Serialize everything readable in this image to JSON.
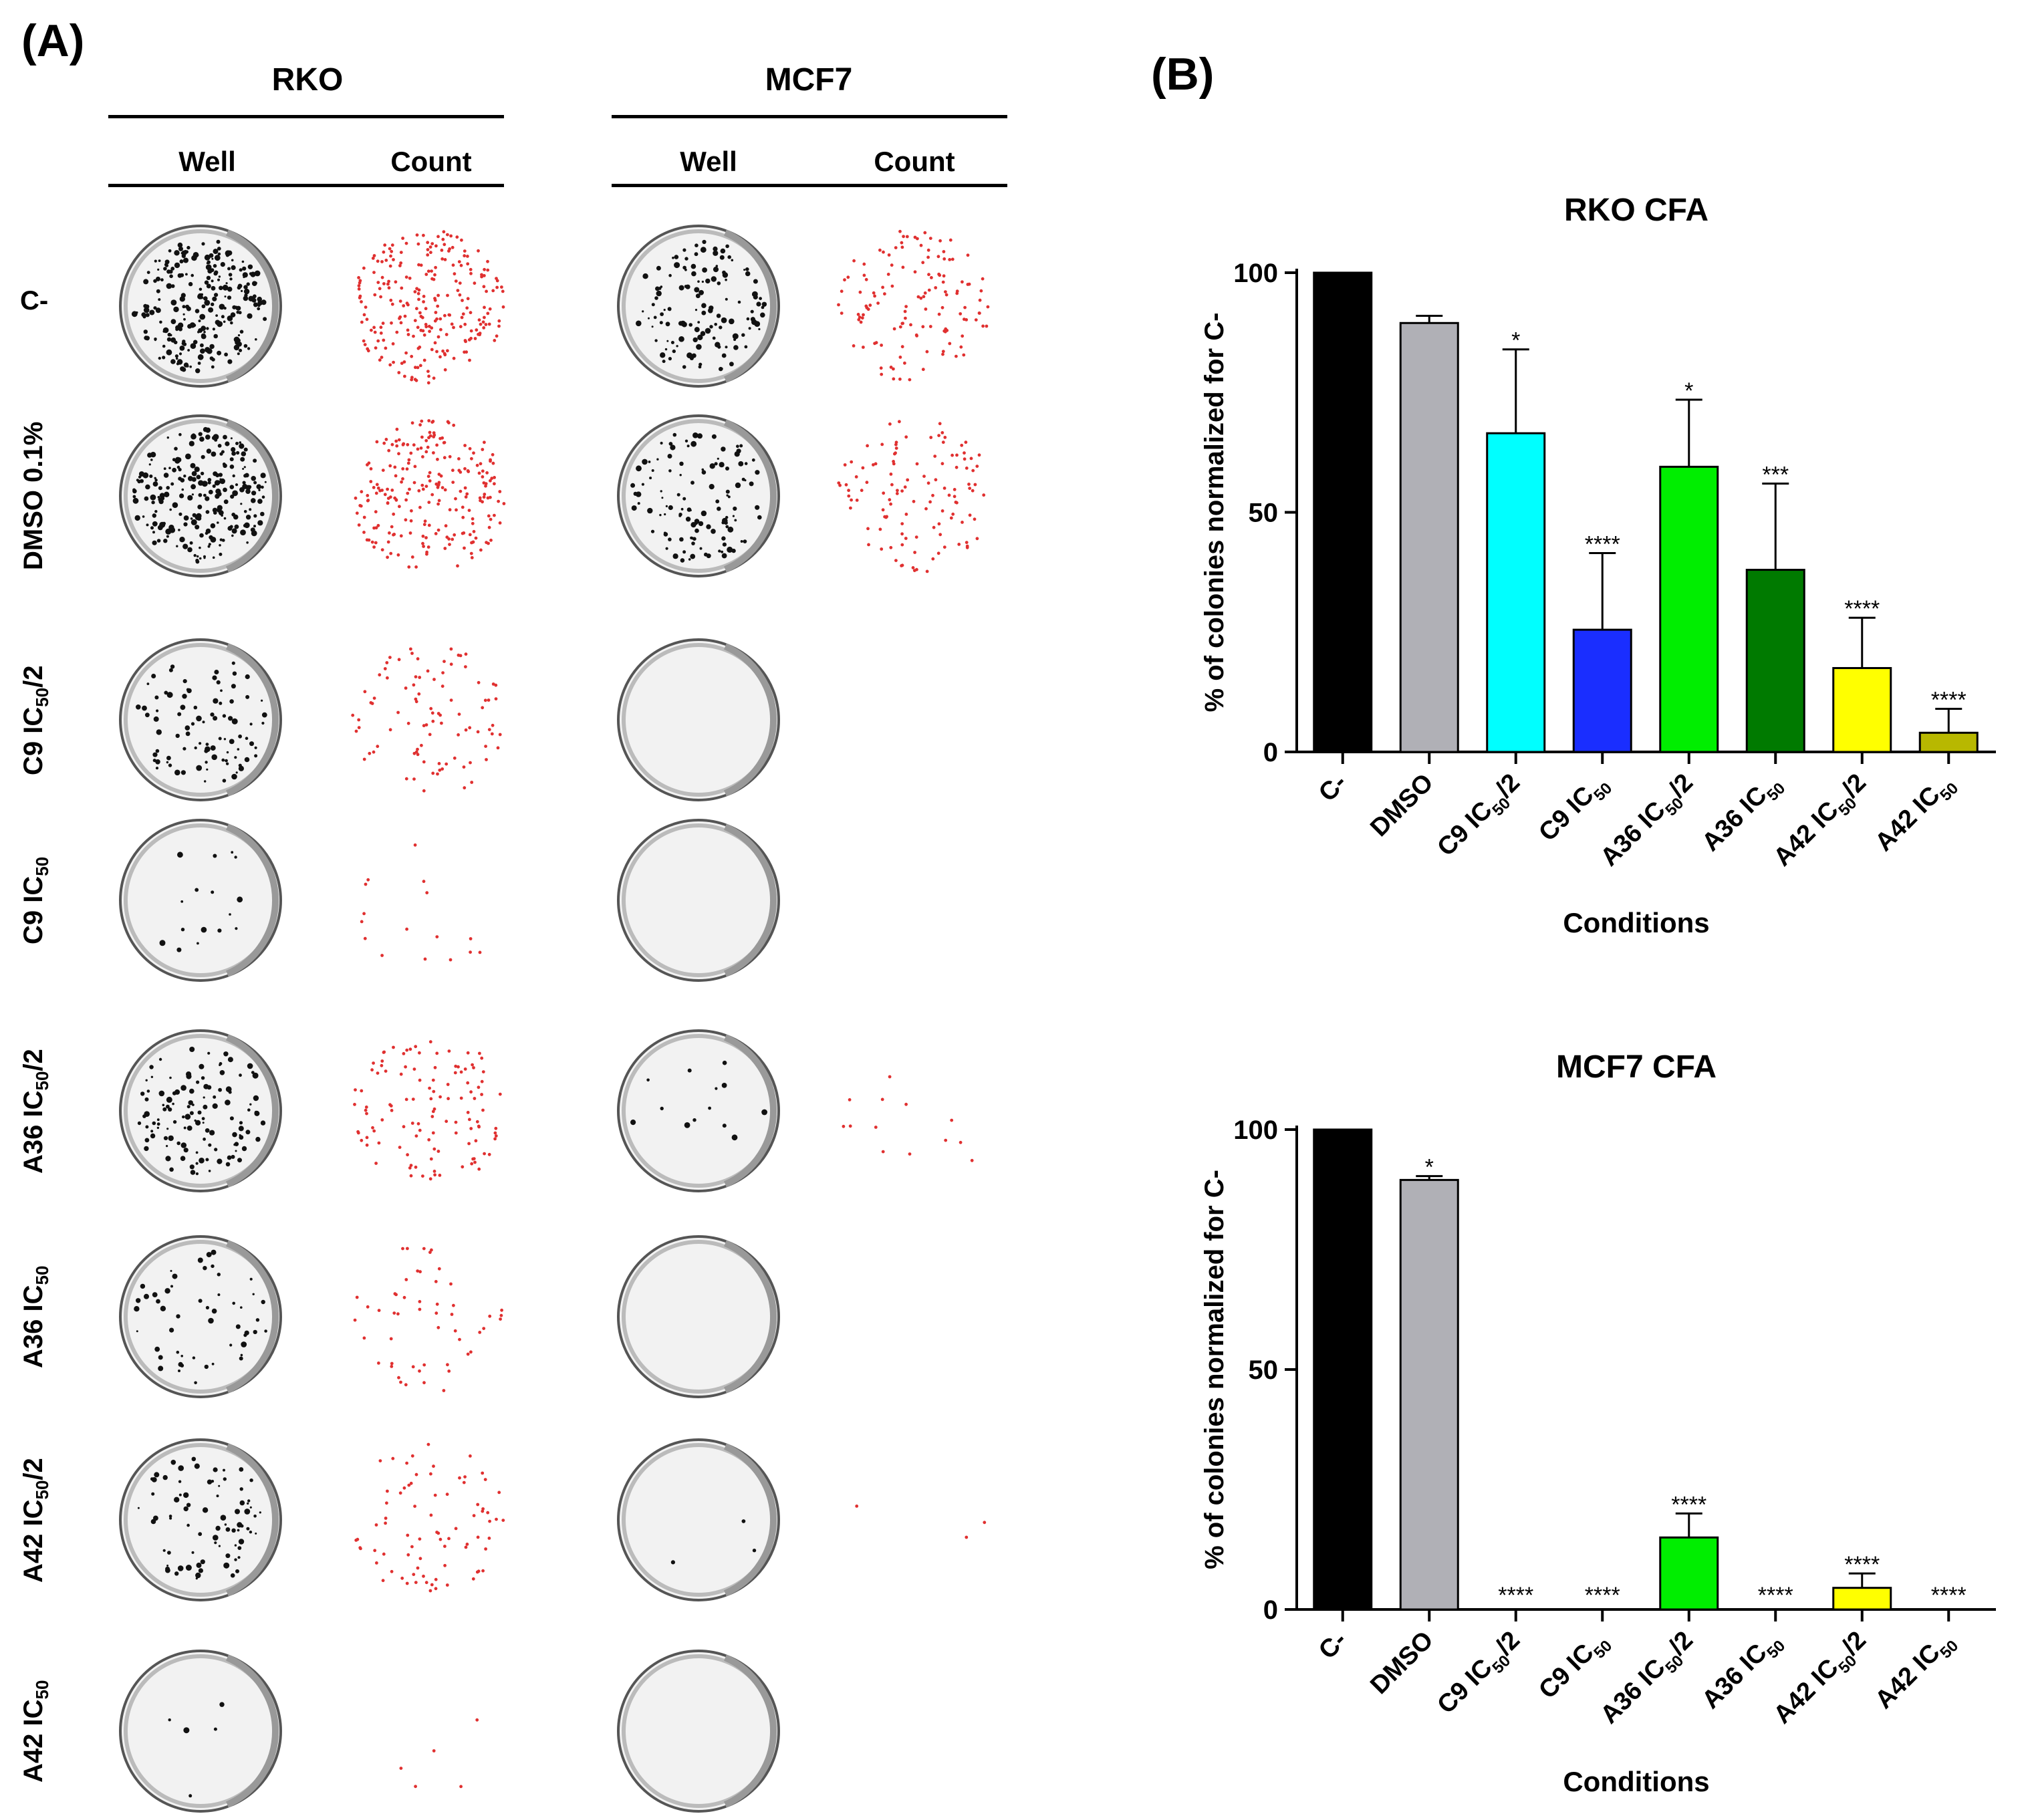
{
  "panel_a": {
    "label": "(A)",
    "cell_lines": [
      {
        "name": "RKO",
        "columns": [
          "Well",
          "Count"
        ]
      },
      {
        "name": "MCF7",
        "columns": [
          "Well",
          "Count"
        ]
      }
    ],
    "rows": [
      {
        "base": "C-",
        "sub": "",
        "tail": ""
      },
      {
        "base": "DMSO 0.1%",
        "sub": "",
        "tail": ""
      },
      {
        "base": "C9 IC",
        "sub": "50",
        "tail": "/2"
      },
      {
        "base": "C9 IC",
        "sub": "50",
        "tail": ""
      },
      {
        "base": "A36 IC",
        "sub": "50",
        "tail": "/2"
      },
      {
        "base": "A36 IC",
        "sub": "50",
        "tail": ""
      },
      {
        "base": "A42 IC",
        "sub": "50",
        "tail": "/2"
      },
      {
        "base": "A42 IC",
        "sub": "50",
        "tail": ""
      }
    ],
    "colony_density": {
      "rko": [
        0.95,
        0.9,
        0.35,
        0.06,
        0.45,
        0.2,
        0.3,
        0.02
      ],
      "mcf7": [
        0.5,
        0.45,
        0.0,
        0.0,
        0.05,
        0.0,
        0.01,
        0.0
      ]
    }
  },
  "panel_b": {
    "label": "(B)"
  },
  "chart_data": [
    {
      "type": "bar",
      "title": "RKO CFA",
      "xlabel": "Conditions",
      "ylabel": "% of colonies normalized for C-",
      "ylim": [
        0,
        100
      ],
      "yticks": [
        0,
        50,
        100
      ],
      "categories": [
        {
          "base": "C-",
          "sub": "",
          "tail": ""
        },
        {
          "base": "DMSO",
          "sub": "",
          "tail": ""
        },
        {
          "base": "C9 IC",
          "sub": "50",
          "tail": "/2"
        },
        {
          "base": "C9 IC",
          "sub": "50",
          "tail": ""
        },
        {
          "base": "A36 IC",
          "sub": "50",
          "tail": "/2"
        },
        {
          "base": "A36 IC",
          "sub": "50",
          "tail": ""
        },
        {
          "base": "A42 IC",
          "sub": "50",
          "tail": "/2"
        },
        {
          "base": "A42 IC",
          "sub": "50",
          "tail": ""
        }
      ],
      "values": [
        100,
        89.5,
        66.5,
        25.5,
        59.5,
        38,
        17.5,
        4
      ],
      "errors": [
        0,
        1.5,
        17.5,
        16,
        14,
        18,
        10.5,
        5
      ],
      "significance": [
        "",
        "",
        "*",
        "****",
        "*",
        "***",
        "****",
        "****"
      ],
      "colors": [
        "#000000",
        "#b0b0b6",
        "#00ffff",
        "#1a2eff",
        "#00ee00",
        "#007a00",
        "#ffff00",
        "#b8b800"
      ]
    },
    {
      "type": "bar",
      "title": "MCF7 CFA",
      "xlabel": "Conditions",
      "ylabel": "% of colonies normalized for C-",
      "ylim": [
        0,
        100
      ],
      "yticks": [
        0,
        50,
        100
      ],
      "categories": [
        {
          "base": "C-",
          "sub": "",
          "tail": ""
        },
        {
          "base": "DMSO",
          "sub": "",
          "tail": ""
        },
        {
          "base": "C9 IC",
          "sub": "50",
          "tail": "/2"
        },
        {
          "base": "C9 IC",
          "sub": "50",
          "tail": ""
        },
        {
          "base": "A36 IC",
          "sub": "50",
          "tail": "/2"
        },
        {
          "base": "A36 IC",
          "sub": "50",
          "tail": ""
        },
        {
          "base": "A42 IC",
          "sub": "50",
          "tail": "/2"
        },
        {
          "base": "A42 IC",
          "sub": "50",
          "tail": ""
        }
      ],
      "values": [
        100,
        89.5,
        0,
        0,
        15,
        0,
        4.5,
        0
      ],
      "errors": [
        0,
        0.8,
        0,
        0,
        5,
        0,
        3,
        0
      ],
      "significance": [
        "",
        "*",
        "****",
        "****",
        "****",
        "****",
        "****",
        "****"
      ],
      "colors": [
        "#000000",
        "#b0b0b6",
        "#00ffff",
        "#1a2eff",
        "#00ee00",
        "#007a00",
        "#ffff00",
        "#b8b800"
      ]
    }
  ]
}
